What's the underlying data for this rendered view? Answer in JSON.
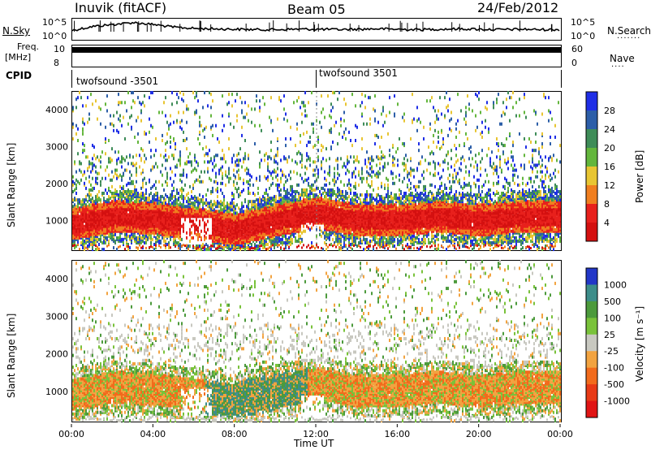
{
  "header": {
    "station": "Inuvik (fitACF)",
    "beam": "Beam 05",
    "date": "24/Feb/2012"
  },
  "left_labels": {
    "nsky": "N.Sky",
    "freq": "Freq.",
    "freq_unit": "[MHz]",
    "cpid": "CPID"
  },
  "right_labels": {
    "nsearch": "N.Search",
    "nave": "Nave"
  },
  "chart_data": [
    {
      "type": "line",
      "name": "noise",
      "y_left_ticks": [
        "10^5",
        "10^0"
      ],
      "y_right_ticks": [
        "10^5",
        "10^0"
      ],
      "x": [
        0,
        1,
        2,
        3,
        4,
        5,
        6,
        7,
        8,
        9,
        10,
        11,
        12,
        13,
        14,
        15,
        16,
        17,
        18,
        19,
        20,
        21,
        22,
        23,
        24
      ],
      "series": [
        {
          "values": [
            2.0,
            3.0,
            3.5,
            4.0,
            3.5,
            2.8,
            2.5,
            2.4,
            2.3,
            2.2,
            2.2,
            2.3,
            2.3,
            2.2,
            2.3,
            2.4,
            2.3,
            2.2,
            2.3,
            2.4,
            2.3,
            2.2,
            2.3,
            2.2,
            2.2
          ]
        }
      ]
    },
    {
      "type": "line",
      "name": "frequency",
      "y_left_ticks": [
        "8",
        "10"
      ],
      "y_right_ticks": [
        "0",
        "60"
      ],
      "x": [
        0,
        24
      ],
      "series": [
        {
          "values": [
            10.3,
            10.3
          ]
        }
      ]
    },
    {
      "type": "table",
      "name": "cpid",
      "entries": [
        {
          "label": "twofsound -3501",
          "start_hour": 0
        },
        {
          "label": "twofsound 3501",
          "start_hour": 12
        }
      ]
    },
    {
      "type": "heatmap",
      "name": "power",
      "ylabel": "Slant Range [km]",
      "ylim": [
        180,
        4500
      ],
      "yticks": [
        1000,
        2000,
        3000,
        4000
      ],
      "xlim": [
        0,
        24
      ],
      "colorbar": {
        "label": "Power [dB]",
        "ticks": [
          "4",
          "8",
          "12",
          "16",
          "20",
          "24",
          "28"
        ],
        "colors": [
          "#1f2ee6",
          "#2c5ea8",
          "#3e8c58",
          "#63b63c",
          "#e8c532",
          "#f07e1f",
          "#e8201c",
          "#d41010"
        ]
      },
      "main_band": [
        {
          "h": 0,
          "r": 900
        },
        {
          "h": 2,
          "r": 1100
        },
        {
          "h": 4,
          "r": 1050
        },
        {
          "h": 6,
          "r": 900
        },
        {
          "h": 8,
          "r": 750
        },
        {
          "h": 10,
          "r": 1000
        },
        {
          "h": 12,
          "r": 1200
        },
        {
          "h": 14,
          "r": 1000
        },
        {
          "h": 16,
          "r": 1000
        },
        {
          "h": 18,
          "r": 1100
        },
        {
          "h": 20,
          "r": 1000
        },
        {
          "h": 22,
          "r": 1100
        },
        {
          "h": 24,
          "r": 1100
        }
      ]
    },
    {
      "type": "heatmap",
      "name": "velocity",
      "ylabel": "Slant Range [km]",
      "ylim": [
        180,
        4500
      ],
      "yticks": [
        1000,
        2000,
        3000,
        4000
      ],
      "xlim": [
        0,
        24
      ],
      "xticks": [
        "00:00",
        "04:00",
        "08:00",
        "12:00",
        "16:00",
        "20:00",
        "00:00"
      ],
      "xlabel": "Time UT",
      "colorbar": {
        "label": "Velocity [m s⁻¹]",
        "ticks": [
          "1000",
          "500",
          "100",
          "25",
          "-25",
          "-100",
          "-500",
          "-1000"
        ],
        "colors": [
          "#2237c8",
          "#3d8d8a",
          "#4c9a3c",
          "#79c23a",
          "#c8c8c0",
          "#f2a340",
          "#f26b1c",
          "#e83a16",
          "#e01414"
        ]
      }
    }
  ]
}
